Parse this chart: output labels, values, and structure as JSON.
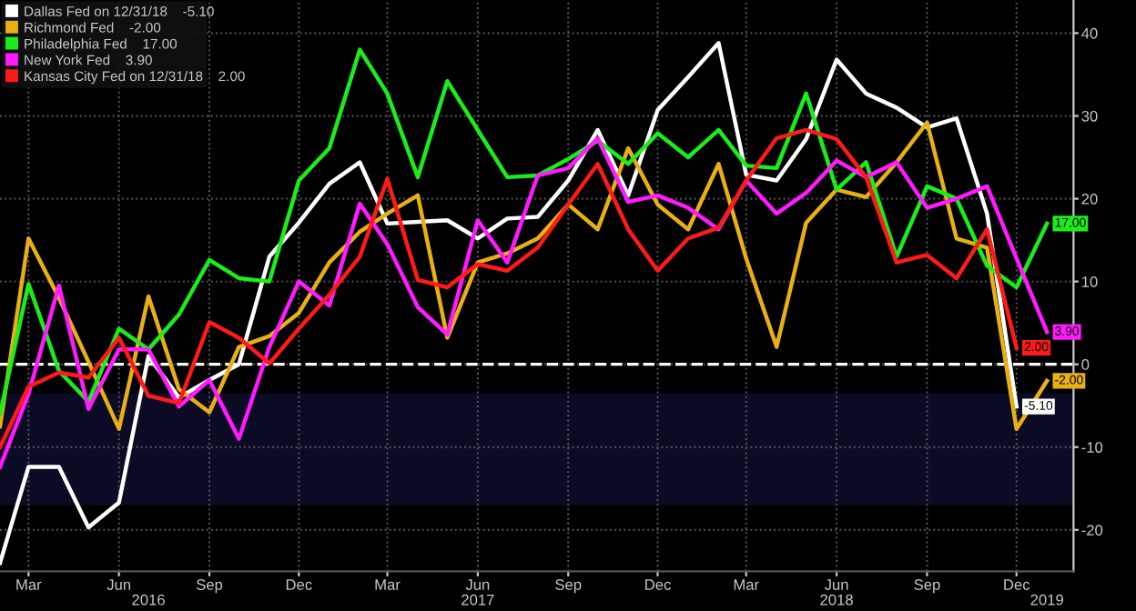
{
  "chart_data": {
    "type": "line",
    "x": [
      "2016-02",
      "2016-03",
      "2016-04",
      "2016-05",
      "2016-06",
      "2016-07",
      "2016-08",
      "2016-09",
      "2016-10",
      "2016-11",
      "2016-12",
      "2017-01",
      "2017-02",
      "2017-03",
      "2017-04",
      "2017-05",
      "2017-06",
      "2017-07",
      "2017-08",
      "2017-09",
      "2017-10",
      "2017-11",
      "2017-12",
      "2018-01",
      "2018-02",
      "2018-03",
      "2018-04",
      "2018-05",
      "2018-06",
      "2018-07",
      "2018-08",
      "2018-09",
      "2018-10",
      "2018-11",
      "2018-12",
      "2019-01"
    ],
    "series": [
      {
        "name": "Dallas Fed on 12/31/18",
        "color": "#ffffff",
        "values": [
          -24,
          -12.4,
          -12.4,
          -19.7,
          -16.7,
          1,
          -4,
          -1.9,
          0,
          13,
          17.1,
          21.8,
          24.4,
          17,
          17.2,
          17.4,
          15.2,
          17.6,
          17.8,
          22.2,
          28.3,
          20.4,
          30.7,
          34.7,
          38.8,
          22.9,
          22.2,
          27.2,
          36.8,
          32.7,
          31,
          28.6,
          29.7,
          18.2,
          -5.1,
          null
        ],
        "value_labels": [
          null,
          null,
          null,
          null,
          null,
          null,
          null,
          null,
          null,
          null,
          null,
          null,
          null,
          null,
          null,
          null,
          null,
          null,
          null,
          null,
          null,
          null,
          null,
          null,
          null,
          null,
          null,
          null,
          null,
          null,
          null,
          null,
          null,
          null,
          "-5.10",
          null
        ]
      },
      {
        "name": "Richmond Fed",
        "color": "#e8b012",
        "values": [
          -7.5,
          15.2,
          8,
          0.3,
          -7.8,
          8.2,
          -3,
          -5.8,
          2.1,
          3.4,
          6.2,
          12.3,
          16,
          18.2,
          20.4,
          3.2,
          12.3,
          13.4,
          15.2,
          19.3,
          16.3,
          26.1,
          19.3,
          16.3,
          24.2,
          12.8,
          2.1,
          17.1,
          21.1,
          20.2,
          24.4,
          29.2,
          15.2,
          14.1,
          -7.8,
          -2
        ],
        "value_labels": [
          null,
          null,
          null,
          null,
          null,
          null,
          null,
          null,
          null,
          null,
          null,
          null,
          null,
          null,
          null,
          null,
          null,
          null,
          null,
          null,
          null,
          null,
          null,
          null,
          null,
          null,
          null,
          null,
          null,
          null,
          null,
          null,
          null,
          null,
          null,
          "-2.00"
        ]
      },
      {
        "name": "Philadelphia Fed",
        "color": "#1aee1a",
        "values": [
          -6,
          9.7,
          -0.8,
          -4.5,
          4.3,
          1.8,
          6,
          12.6,
          10.4,
          10,
          22.2,
          26.1,
          38,
          32.7,
          22.6,
          34.2,
          28.3,
          22.6,
          22.8,
          24.8,
          27,
          24.2,
          27.9,
          25,
          28.3,
          24,
          23.7,
          32.7,
          21.1,
          24.4,
          13,
          21.5,
          20,
          11.9,
          9.3,
          17
        ],
        "value_labels": [
          null,
          null,
          null,
          null,
          null,
          null,
          null,
          null,
          null,
          null,
          null,
          null,
          null,
          null,
          null,
          null,
          null,
          null,
          null,
          null,
          null,
          null,
          null,
          null,
          null,
          null,
          null,
          null,
          null,
          null,
          null,
          null,
          null,
          null,
          null,
          "17.00"
        ]
      },
      {
        "name": "New York Fed",
        "color": "#ff1aff",
        "values": [
          -12.4,
          -3.6,
          9.5,
          -5.4,
          1.8,
          1.8,
          -5.1,
          -1.9,
          -9,
          2.1,
          10,
          7.1,
          19.4,
          14.5,
          6.9,
          3.6,
          17.4,
          12.3,
          22.8,
          23.7,
          27.3,
          19.6,
          20.4,
          18.9,
          16.3,
          22.2,
          18.2,
          20.7,
          24.6,
          22.6,
          24.4,
          18.9,
          20,
          21.5,
          12.8,
          3.9
        ],
        "value_labels": [
          null,
          null,
          null,
          null,
          null,
          null,
          null,
          null,
          null,
          null,
          null,
          null,
          null,
          null,
          null,
          null,
          null,
          null,
          null,
          null,
          null,
          null,
          null,
          null,
          null,
          null,
          null,
          null,
          null,
          null,
          null,
          null,
          null,
          null,
          null,
          "3.90"
        ]
      },
      {
        "name": "Kansas City Fed on 12/31/18",
        "color": "#ff1a1a",
        "values": [
          -10,
          -2.7,
          -1,
          -1.6,
          3.2,
          -3.8,
          -4.7,
          5.1,
          3.2,
          0.1,
          4.3,
          8.4,
          13,
          22.4,
          10.2,
          9.3,
          12.1,
          11.3,
          14.1,
          19.3,
          24.2,
          16.3,
          11.3,
          15.2,
          16.5,
          22.2,
          27.3,
          28.3,
          27.2,
          22.6,
          12.3,
          13.2,
          10.4,
          16.3,
          2,
          null
        ],
        "value_labels": [
          null,
          null,
          null,
          null,
          null,
          null,
          null,
          null,
          null,
          null,
          null,
          null,
          null,
          null,
          null,
          null,
          null,
          null,
          null,
          null,
          null,
          null,
          null,
          null,
          null,
          null,
          null,
          null,
          null,
          null,
          null,
          null,
          null,
          null,
          "2.00",
          null
        ]
      }
    ],
    "xlim": [
      "2016-02-01",
      "2019-01-28"
    ],
    "xticks": [
      {
        "value": "2016-03",
        "label": "Mar"
      },
      {
        "value": "2016-06",
        "label": "Jun"
      },
      {
        "value": "2016-09",
        "label": "Sep"
      },
      {
        "value": "2016-12",
        "label": "Dec"
      },
      {
        "value": "2017-03",
        "label": "Mar"
      },
      {
        "value": "2017-06",
        "label": "Jun"
      },
      {
        "value": "2017-09",
        "label": "Sep"
      },
      {
        "value": "2017-12",
        "label": "Dec"
      },
      {
        "value": "2018-03",
        "label": "Mar"
      },
      {
        "value": "2018-06",
        "label": "Jun"
      },
      {
        "value": "2018-09",
        "label": "Sep"
      },
      {
        "value": "2018-12",
        "label": "Dec"
      }
    ],
    "x2lim": [
      "2016-02-01",
      "2019-01-28"
    ],
    "x2ticks": [
      {
        "value": "2016-07",
        "label": "2016"
      },
      {
        "value": "2017-06",
        "label": "2017"
      },
      {
        "value": "2018-06",
        "label": "2018"
      },
      {
        "value": "2019-01",
        "label": "2019"
      }
    ],
    "ylim": [
      -25,
      44
    ],
    "yticks": [
      {
        "value": -20,
        "label": "-20"
      },
      {
        "value": -10,
        "label": "-10"
      },
      0,
      10,
      20,
      30,
      40
    ],
    "ref_lines": [
      {
        "axis": "y",
        "value": 0,
        "color": "#ffffff",
        "line_style": "dashed"
      }
    ],
    "bands": [
      {
        "axis": "y",
        "from": -17,
        "to": -3.5,
        "color": "#0b0b26"
      }
    ],
    "grid": true,
    "legend": "top left",
    "marker": "none",
    "line_style": "solid"
  }
}
